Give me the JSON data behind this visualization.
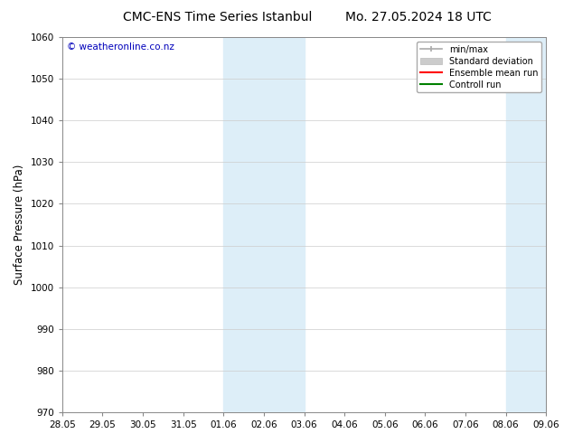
{
  "title_left": "CMC-ENS Time Series Istanbul",
  "title_right": "Mo. 27.05.2024 18 UTC",
  "ylabel": "Surface Pressure (hPa)",
  "ylim": [
    970,
    1060
  ],
  "yticks": [
    970,
    980,
    990,
    1000,
    1010,
    1020,
    1030,
    1040,
    1050,
    1060
  ],
  "xlabel_dates": [
    "28.05",
    "29.05",
    "30.05",
    "31.05",
    "01.06",
    "02.06",
    "03.06",
    "04.06",
    "05.06",
    "06.06",
    "07.06",
    "08.06",
    "09.06"
  ],
  "watermark": "© weatheronline.co.nz",
  "watermark_color": "#0000bb",
  "shaded_regions": [
    {
      "xstart": "01.06",
      "xend": "03.06"
    },
    {
      "xstart": "08.06",
      "xend": "09.06"
    }
  ],
  "shaded_color": "#ddeef8",
  "legend_entries": [
    {
      "label": "min/max",
      "color": "#aaaaaa",
      "lw": 1.2,
      "style": "minmax"
    },
    {
      "label": "Standard deviation",
      "color": "#cccccc",
      "lw": 8,
      "style": "bar"
    },
    {
      "label": "Ensemble mean run",
      "color": "#ff0000",
      "lw": 1.5,
      "style": "line"
    },
    {
      "label": "Controll run",
      "color": "#008000",
      "lw": 1.5,
      "style": "line"
    }
  ],
  "bg_color": "#ffffff",
  "grid_color": "#cccccc",
  "title_fontsize": 10,
  "tick_fontsize": 7.5,
  "ylabel_fontsize": 8.5,
  "legend_fontsize": 7,
  "watermark_fontsize": 7.5,
  "font_family": "DejaVu Sans"
}
